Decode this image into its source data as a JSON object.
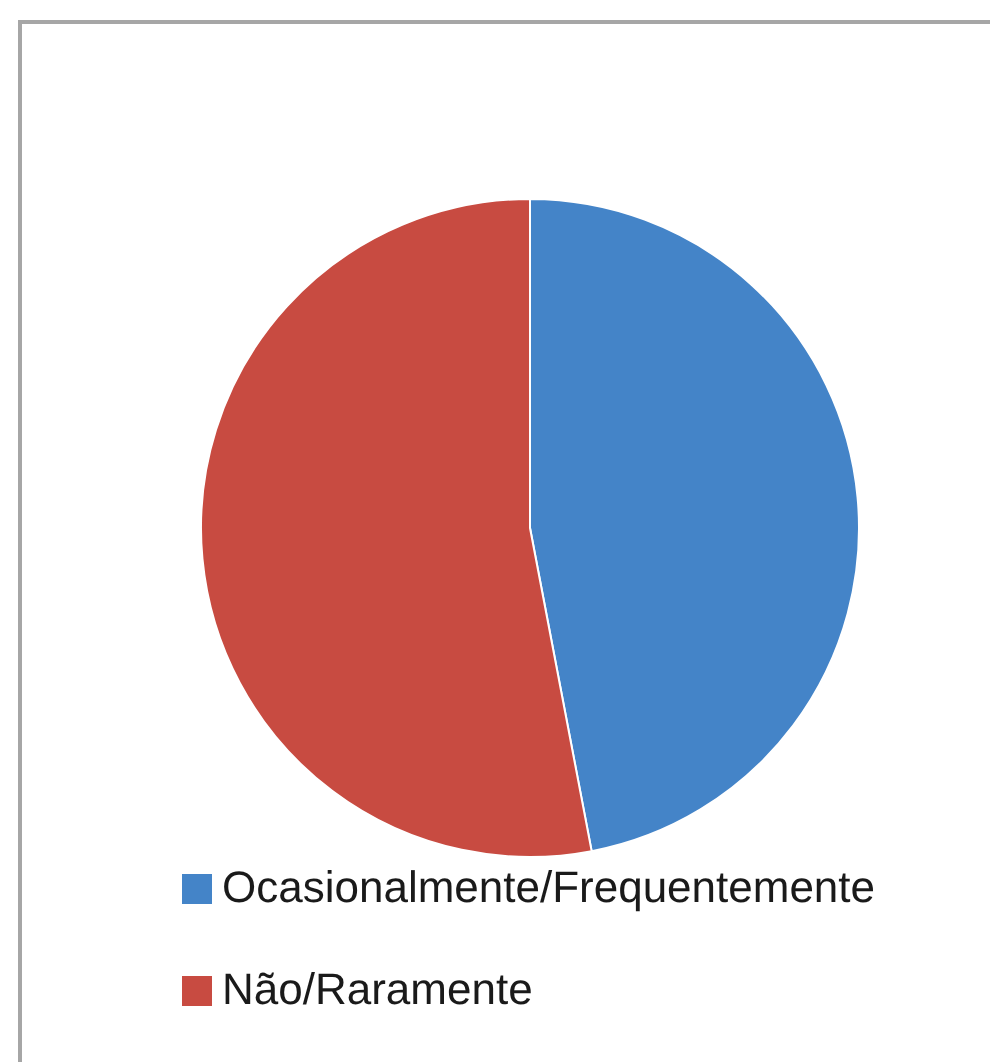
{
  "chart_data": {
    "type": "pie",
    "categories": [
      "Ocasionalmente/Frequentemente",
      "Não/Raramente"
    ],
    "values": [
      47,
      53
    ],
    "colors": [
      "#4484c8",
      "#c84b41"
    ],
    "legend": "bottom"
  }
}
